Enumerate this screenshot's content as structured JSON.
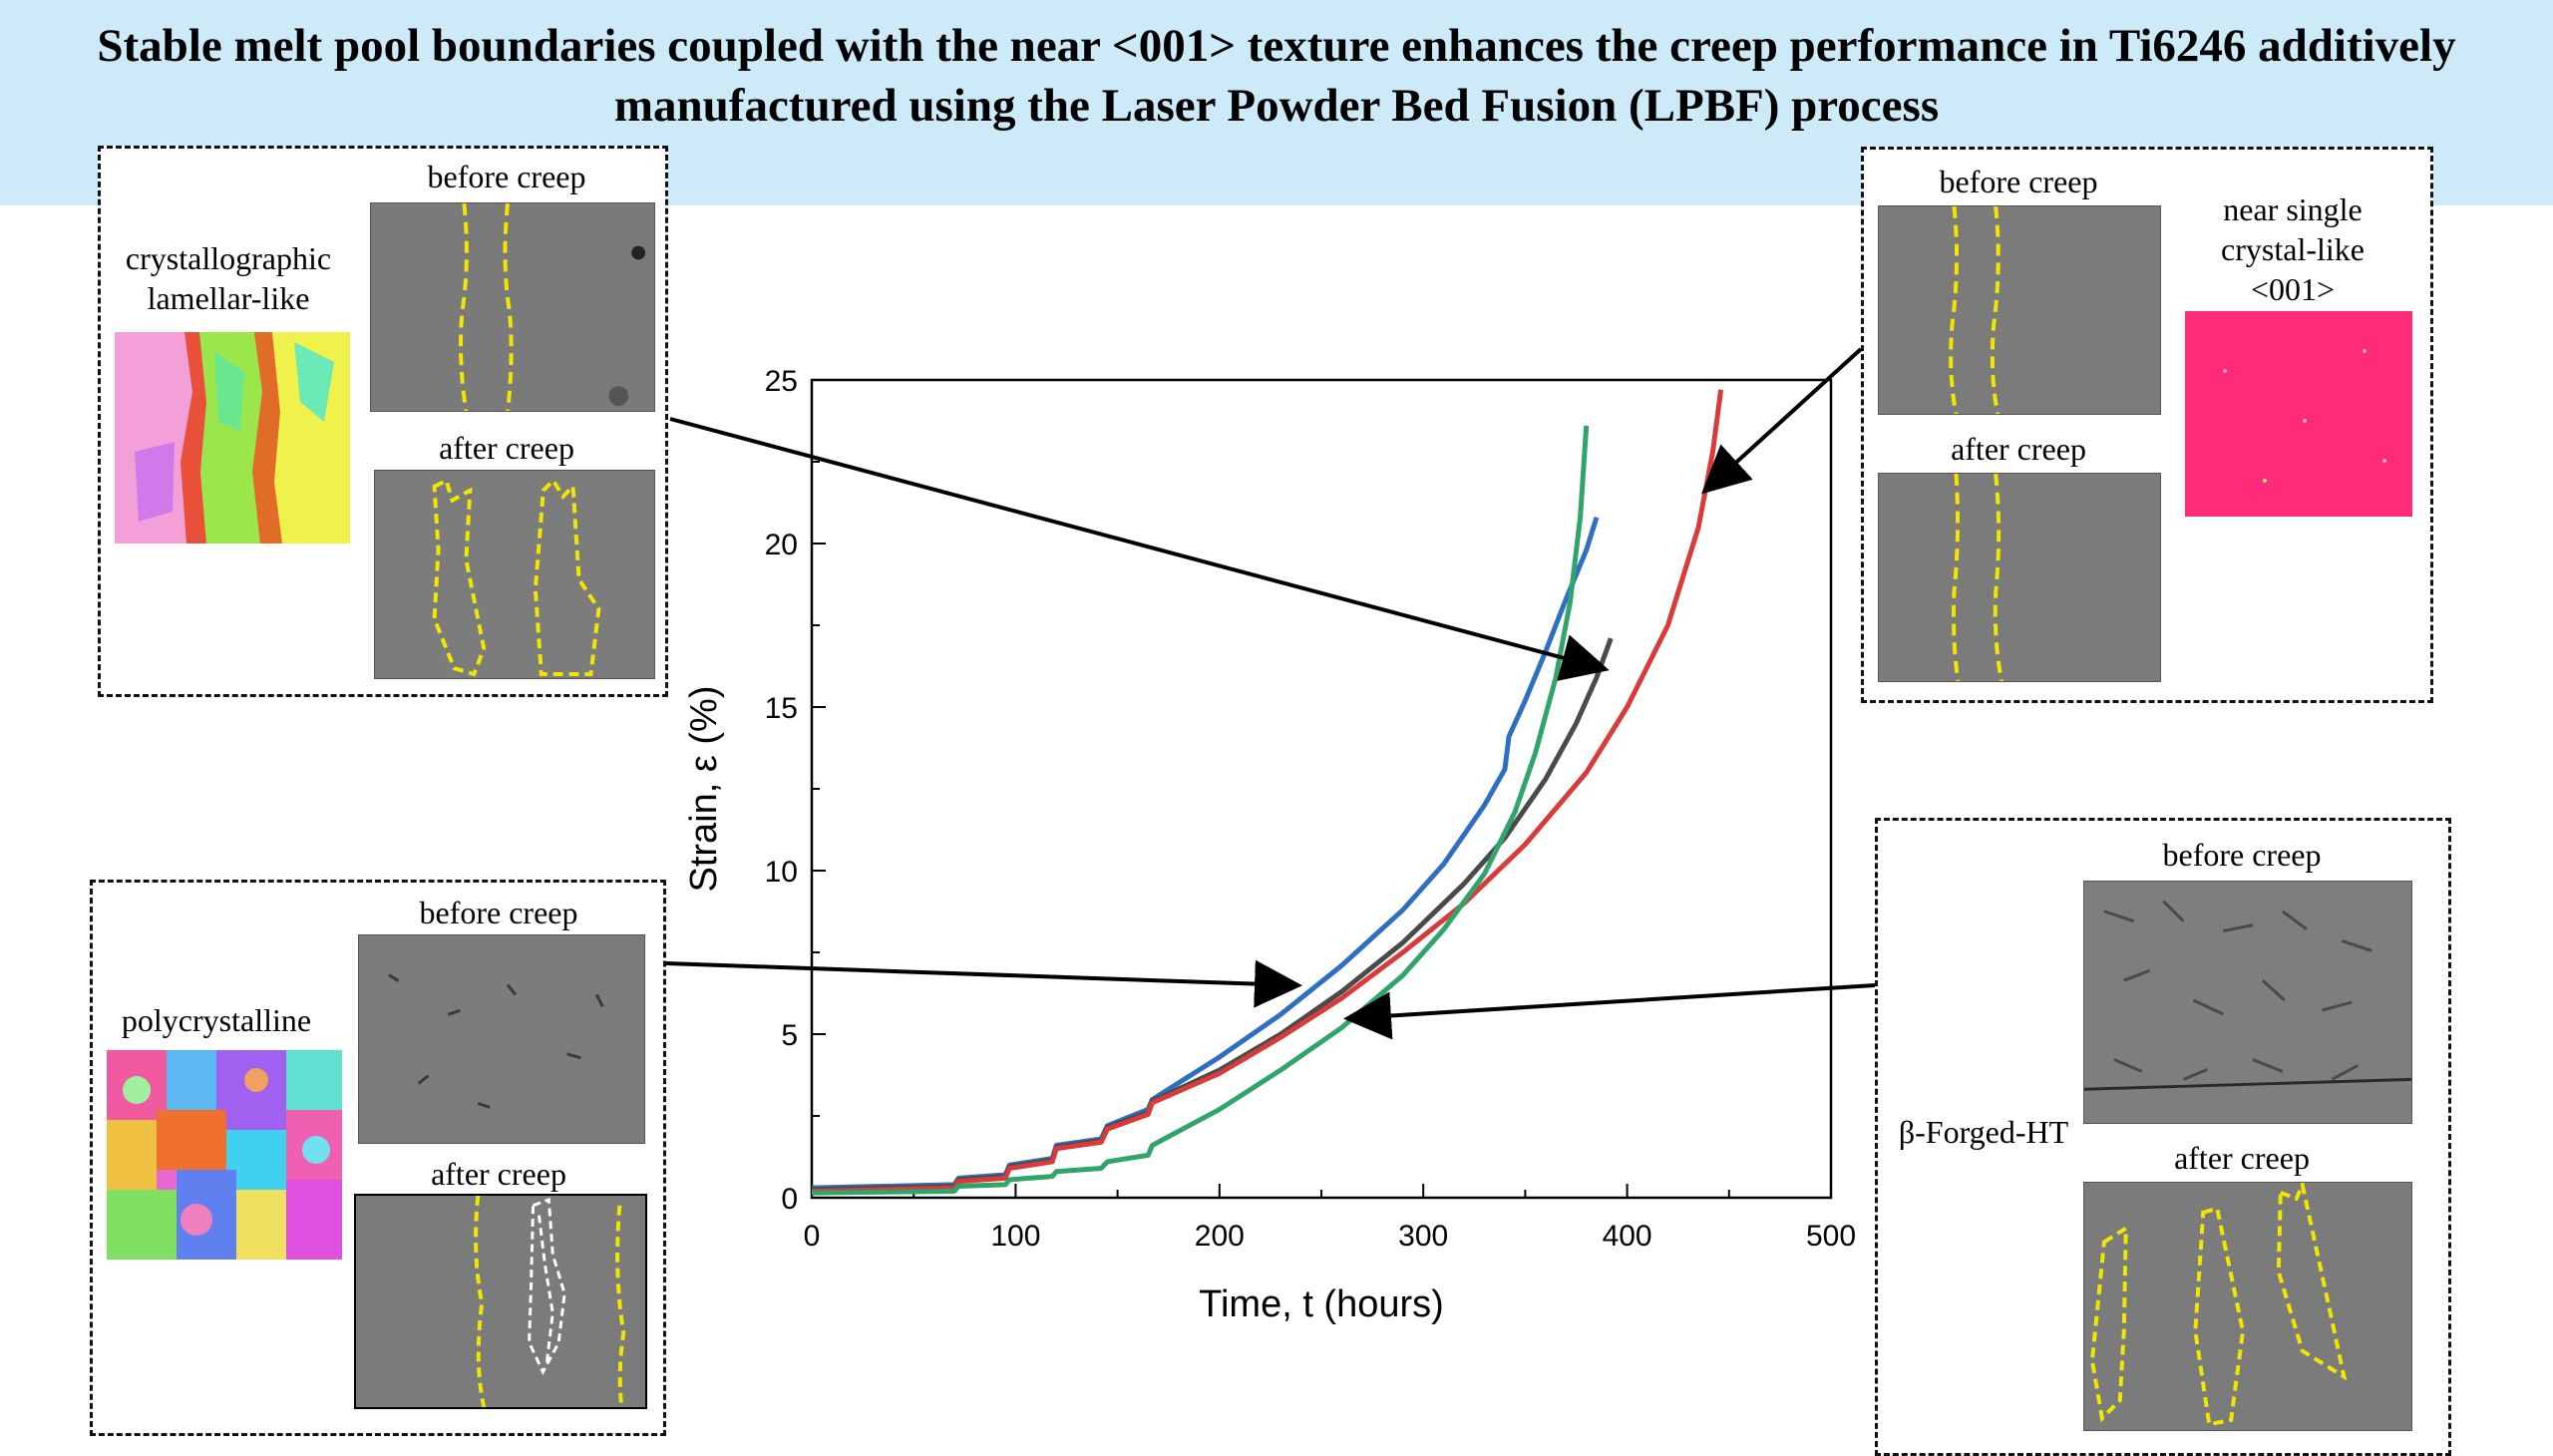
{
  "title_line1": "Stable melt pool boundaries coupled with the near <001> texture enhances the creep performance in Ti6246 additively",
  "title_line2": "manufactured using the Laser Powder Bed Fusion (LPBF) process",
  "panels": {
    "top_left": {
      "label": "crystallographic lamellar-like",
      "label_line1": "crystallographic",
      "label_line2": "lamellar-like",
      "before": "before creep",
      "after": "after creep"
    },
    "top_right": {
      "label_line1": "near single",
      "label_line2": "crystal-like",
      "label_line3": "<001>",
      "before": "before creep",
      "after": "after creep"
    },
    "bottom_left": {
      "label": "polycrystalline",
      "before": "before creep",
      "after": "after creep"
    },
    "bottom_right": {
      "label": "β-Forged-HT",
      "before": "before creep",
      "after": "after creep"
    }
  },
  "colors": {
    "banner": "#cdeaf8",
    "blue_series": "#2e6fc4",
    "red_series": "#d93a3a",
    "green_series": "#2fa56a",
    "dark_series": "#4a4a4a",
    "boundary_yellow": "#f2e600"
  },
  "chart_data": {
    "type": "line",
    "xlabel": "Time, t (hours)",
    "ylabel": "Strain, ε (%)",
    "xlim": [
      0,
      500
    ],
    "ylim": [
      0,
      25
    ],
    "xticks": [
      "0",
      "100",
      "200",
      "300",
      "400",
      "500"
    ],
    "yticks": [
      "0",
      "5",
      "10",
      "15",
      "20",
      "25"
    ],
    "grid": false,
    "series": [
      {
        "color": "#2e6fc4",
        "points": [
          [
            0,
            0.3
          ],
          [
            70,
            0.4
          ],
          [
            72,
            0.6
          ],
          [
            95,
            0.7
          ],
          [
            97,
            1.0
          ],
          [
            118,
            1.2
          ],
          [
            120,
            1.6
          ],
          [
            142,
            1.8
          ],
          [
            145,
            2.2
          ],
          [
            165,
            2.7
          ],
          [
            167,
            3.0
          ],
          [
            200,
            4.3
          ],
          [
            230,
            5.6
          ],
          [
            260,
            7.1
          ],
          [
            290,
            8.8
          ],
          [
            310,
            10.2
          ],
          [
            330,
            12.0
          ],
          [
            340,
            13.1
          ],
          [
            342,
            14.1
          ],
          [
            350,
            15.2
          ],
          [
            360,
            16.7
          ],
          [
            370,
            18.3
          ],
          [
            380,
            19.8
          ],
          [
            385,
            20.8
          ]
        ]
      },
      {
        "color": "#4a4a4a",
        "points": [
          [
            0,
            0.25
          ],
          [
            70,
            0.35
          ],
          [
            72,
            0.55
          ],
          [
            95,
            0.65
          ],
          [
            97,
            0.95
          ],
          [
            118,
            1.15
          ],
          [
            120,
            1.55
          ],
          [
            142,
            1.75
          ],
          [
            145,
            2.15
          ],
          [
            165,
            2.6
          ],
          [
            167,
            2.95
          ],
          [
            200,
            3.9
          ],
          [
            230,
            5.0
          ],
          [
            260,
            6.3
          ],
          [
            290,
            7.8
          ],
          [
            320,
            9.6
          ],
          [
            340,
            11.0
          ],
          [
            360,
            12.8
          ],
          [
            375,
            14.5
          ],
          [
            385,
            15.9
          ],
          [
            392,
            17.1
          ]
        ]
      },
      {
        "color": "#d93a3a",
        "points": [
          [
            0,
            0.2
          ],
          [
            70,
            0.3
          ],
          [
            72,
            0.5
          ],
          [
            95,
            0.6
          ],
          [
            97,
            0.9
          ],
          [
            118,
            1.1
          ],
          [
            120,
            1.5
          ],
          [
            142,
            1.7
          ],
          [
            145,
            2.1
          ],
          [
            165,
            2.55
          ],
          [
            167,
            2.9
          ],
          [
            200,
            3.8
          ],
          [
            230,
            4.9
          ],
          [
            260,
            6.1
          ],
          [
            290,
            7.5
          ],
          [
            320,
            9.0
          ],
          [
            350,
            10.8
          ],
          [
            380,
            13.0
          ],
          [
            400,
            15.0
          ],
          [
            420,
            17.5
          ],
          [
            435,
            20.5
          ],
          [
            442,
            22.8
          ],
          [
            446,
            24.7
          ]
        ]
      },
      {
        "color": "#2fa56a",
        "points": [
          [
            0,
            0.15
          ],
          [
            70,
            0.2
          ],
          [
            72,
            0.35
          ],
          [
            95,
            0.4
          ],
          [
            97,
            0.55
          ],
          [
            118,
            0.65
          ],
          [
            120,
            0.8
          ],
          [
            142,
            0.9
          ],
          [
            145,
            1.1
          ],
          [
            165,
            1.3
          ],
          [
            167,
            1.6
          ],
          [
            200,
            2.7
          ],
          [
            230,
            3.9
          ],
          [
            260,
            5.2
          ],
          [
            290,
            6.8
          ],
          [
            310,
            8.2
          ],
          [
            330,
            9.9
          ],
          [
            345,
            11.8
          ],
          [
            355,
            13.6
          ],
          [
            365,
            15.9
          ],
          [
            372,
            18.2
          ],
          [
            377,
            20.8
          ],
          [
            380,
            23.6
          ]
        ]
      }
    ]
  }
}
